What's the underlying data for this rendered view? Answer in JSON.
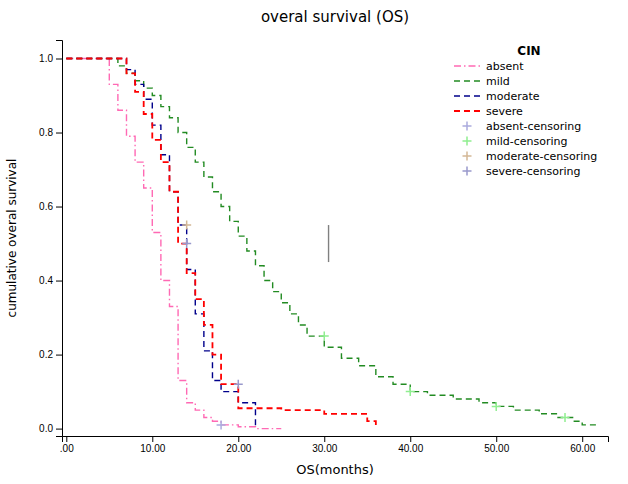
{
  "chart_data": {
    "type": "step",
    "title": "overal survival (OS)",
    "x_label": "OS(months)",
    "y_label": "cumulative overal survival",
    "legend_title": "CIN",
    "legend": "upper-right",
    "grid": false,
    "xlim": [
      -0.5,
      63
    ],
    "ylim": [
      -0.02,
      1.05
    ],
    "xticks": [
      {
        "value": 0.0,
        "label": ".00"
      },
      {
        "value": 10.0,
        "label": "10.00"
      },
      {
        "value": 20.0,
        "label": "20.00"
      },
      {
        "value": 30.0,
        "label": "30.00"
      },
      {
        "value": 40.0,
        "label": "40.00"
      },
      {
        "value": 50.0,
        "label": "50.00"
      },
      {
        "value": 60.0,
        "label": "60.00"
      }
    ],
    "yticks": [
      {
        "value": 0.0,
        "label": "0.0"
      },
      0.2,
      0.4,
      0.6,
      0.8,
      {
        "value": 1.0,
        "label": "1.0"
      }
    ],
    "series": [
      {
        "name": "absent",
        "type": "step",
        "color": "#FF69B4",
        "line_style": "dashdot",
        "x": [
          0,
          5,
          5,
          6,
          6,
          7,
          7,
          8,
          8,
          9,
          9,
          10,
          10,
          11,
          11,
          12,
          12,
          13,
          13,
          14,
          14,
          15,
          15,
          16,
          16,
          17,
          17,
          18,
          18,
          20,
          20,
          22,
          22,
          25
        ],
        "values": [
          1.0,
          1.0,
          0.93,
          0.93,
          0.86,
          0.86,
          0.79,
          0.79,
          0.72,
          0.72,
          0.65,
          0.65,
          0.53,
          0.53,
          0.4,
          0.4,
          0.33,
          0.33,
          0.13,
          0.13,
          0.07,
          0.07,
          0.05,
          0.05,
          0.03,
          0.03,
          0.02,
          0.02,
          0.01,
          0.01,
          0.005,
          0.005,
          0.0,
          0.0
        ]
      },
      {
        "name": "mild",
        "type": "step",
        "color": "#228B22",
        "line_style": "dashed",
        "x": [
          0,
          6,
          6,
          7,
          7,
          8,
          8,
          9,
          9,
          10,
          10,
          11,
          11,
          12,
          12,
          13,
          13,
          14,
          14,
          15,
          15,
          16,
          16,
          17,
          17,
          18,
          18,
          19,
          19,
          20,
          20,
          21,
          21,
          22,
          22,
          23,
          23,
          24,
          24,
          25,
          25,
          26,
          26,
          27,
          27,
          28,
          28,
          30,
          30,
          32,
          32,
          34,
          34,
          36,
          36,
          38,
          38,
          40,
          40,
          42,
          42,
          45,
          45,
          48,
          48,
          50,
          50,
          52,
          52,
          55,
          55,
          57,
          57,
          59,
          59,
          60,
          60,
          62
        ],
        "values": [
          1.0,
          1.0,
          0.98,
          0.98,
          0.96,
          0.96,
          0.94,
          0.94,
          0.92,
          0.92,
          0.9,
          0.9,
          0.87,
          0.87,
          0.84,
          0.84,
          0.8,
          0.8,
          0.76,
          0.76,
          0.72,
          0.72,
          0.68,
          0.68,
          0.64,
          0.64,
          0.6,
          0.6,
          0.56,
          0.56,
          0.52,
          0.52,
          0.48,
          0.48,
          0.44,
          0.44,
          0.4,
          0.4,
          0.37,
          0.37,
          0.34,
          0.34,
          0.31,
          0.31,
          0.28,
          0.28,
          0.25,
          0.25,
          0.22,
          0.22,
          0.19,
          0.19,
          0.17,
          0.17,
          0.14,
          0.14,
          0.12,
          0.12,
          0.1,
          0.1,
          0.09,
          0.09,
          0.08,
          0.08,
          0.07,
          0.07,
          0.06,
          0.06,
          0.05,
          0.05,
          0.04,
          0.04,
          0.03,
          0.03,
          0.02,
          0.02,
          0.01,
          0.01
        ]
      },
      {
        "name": "moderate",
        "type": "step",
        "color": "#00008B",
        "line_style": "dashed",
        "x": [
          0,
          7,
          7,
          8,
          8,
          9,
          9,
          10,
          10,
          11,
          11,
          12,
          12,
          13,
          13,
          14,
          14,
          15,
          15,
          16,
          16,
          17,
          17,
          18,
          18,
          20,
          20,
          22,
          22
        ],
        "values": [
          1.0,
          1.0,
          0.97,
          0.97,
          0.93,
          0.93,
          0.89,
          0.89,
          0.82,
          0.82,
          0.74,
          0.74,
          0.64,
          0.64,
          0.55,
          0.55,
          0.43,
          0.43,
          0.31,
          0.31,
          0.21,
          0.21,
          0.13,
          0.13,
          0.1,
          0.1,
          0.07,
          0.07,
          0.0
        ]
      },
      {
        "name": "severe",
        "type": "step",
        "color": "#FF0000",
        "line_style": "dashed",
        "x": [
          0,
          7,
          7,
          8,
          8,
          9,
          9,
          10,
          10,
          11,
          11,
          12,
          12,
          13,
          13,
          14,
          14,
          15,
          15,
          16,
          16,
          17,
          17,
          18,
          18,
          20,
          20,
          25,
          25,
          30,
          30,
          35,
          35,
          36
        ],
        "values": [
          1.0,
          1.0,
          0.96,
          0.96,
          0.91,
          0.91,
          0.85,
          0.85,
          0.78,
          0.78,
          0.72,
          0.72,
          0.64,
          0.64,
          0.5,
          0.5,
          0.42,
          0.42,
          0.35,
          0.35,
          0.28,
          0.28,
          0.2,
          0.2,
          0.12,
          0.12,
          0.055,
          0.055,
          0.05,
          0.05,
          0.04,
          0.04,
          0.02,
          0.0
        ]
      },
      {
        "name": "absent-censoring",
        "type": "scatter",
        "marker": "+",
        "color": "#AAAADD",
        "x": [
          18
        ],
        "values": [
          0.01
        ]
      },
      {
        "name": "mild-censoring",
        "type": "scatter",
        "marker": "+",
        "color": "#90EE90",
        "x": [
          30,
          40,
          50,
          58
        ],
        "values": [
          0.25,
          0.1,
          0.06,
          0.03
        ]
      },
      {
        "name": "moderate-censoring",
        "type": "scatter",
        "marker": "+",
        "color": "#D4B896",
        "x": [
          14
        ],
        "values": [
          0.55
        ]
      },
      {
        "name": "severe-censoring",
        "type": "scatter",
        "marker": "+",
        "color": "#9999CC",
        "x": [
          14,
          20
        ],
        "values": [
          0.5,
          0.12
        ]
      },
      {
        "type": "line",
        "color": "#808080",
        "line_style": "solid",
        "x": [
          30.5,
          30.5
        ],
        "values": [
          0.45,
          0.55
        ]
      }
    ]
  }
}
